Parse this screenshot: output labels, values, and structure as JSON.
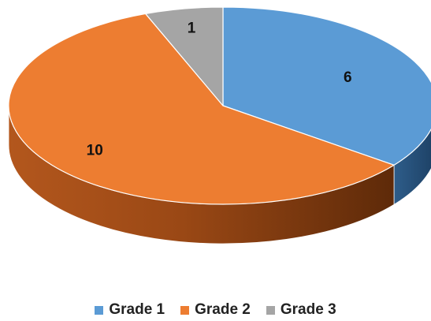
{
  "chart_data": {
    "type": "pie",
    "variant": "3d",
    "title": "",
    "categories": [
      "Grade 1",
      "Grade 2",
      "Grade 3"
    ],
    "values": [
      6,
      10,
      1
    ],
    "data_labels": [
      "6",
      "10",
      "1"
    ],
    "colors": [
      "#5b9bd5",
      "#ed7d31",
      "#a5a5a5"
    ],
    "legend": {
      "position": "bottom",
      "items": [
        {
          "label": "Grade 1",
          "color": "#5b9bd5"
        },
        {
          "label": "Grade 2",
          "color": "#ed7d31"
        },
        {
          "label": "Grade 3",
          "color": "#a5a5a5"
        }
      ]
    }
  }
}
